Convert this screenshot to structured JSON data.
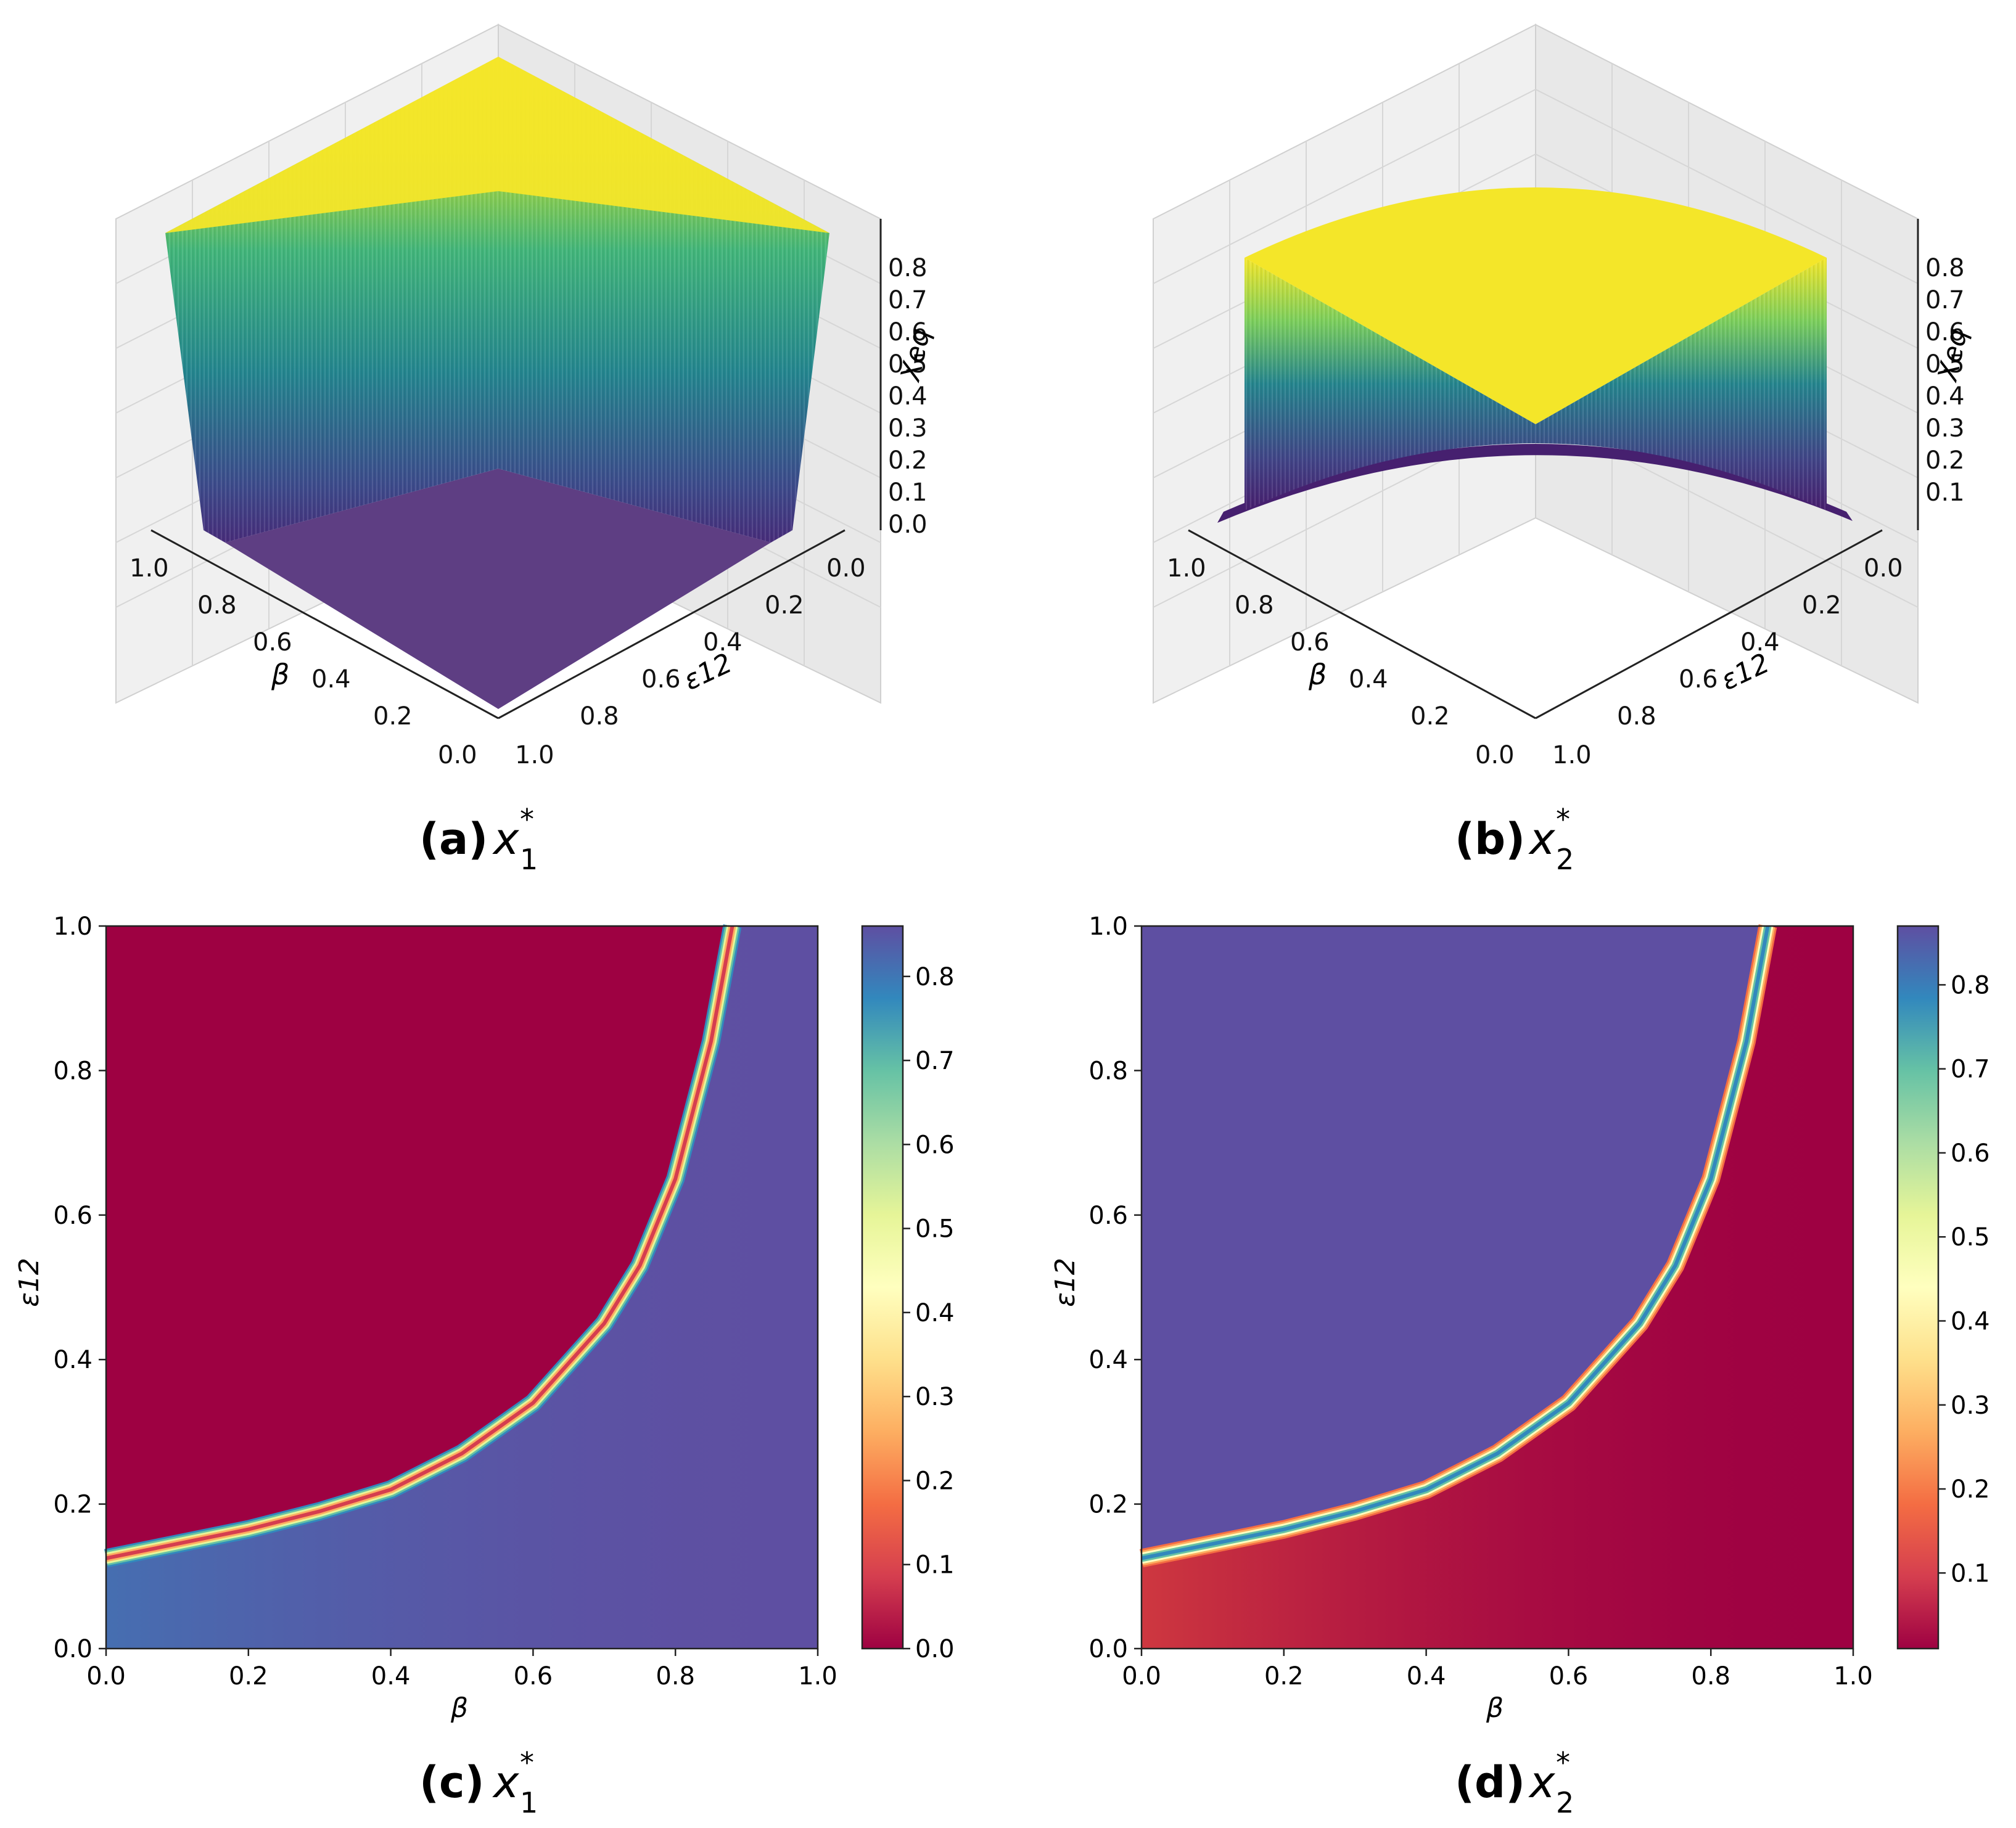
{
  "chart_data": [
    {
      "id": "a",
      "type": "surface3d",
      "variable": "x1*",
      "caption": {
        "label": "(a)",
        "symbol": "x",
        "sub": "1",
        "sup": "*"
      },
      "axes": {
        "x": {
          "label": "β",
          "ticks": [
            "1.0",
            "0.8",
            "0.6",
            "0.4",
            "0.2",
            "0.0"
          ],
          "range": [
            0,
            1
          ]
        },
        "y": {
          "label": "ε12",
          "ticks": [
            "0.0",
            "0.2",
            "0.4",
            "0.6",
            "0.8",
            "1.0"
          ],
          "range": [
            0,
            1
          ]
        },
        "z": {
          "label": "Xeq",
          "ticks": [
            "0.8",
            "0.7",
            "0.6",
            "0.5",
            "0.4",
            "0.3",
            "0.2",
            "0.1",
            "0.0"
          ],
          "range": [
            0,
            0.86
          ]
        }
      },
      "description_values": {
        "high_plateau": 0.86,
        "low_plateau": 0.0
      }
    },
    {
      "id": "b",
      "type": "surface3d",
      "variable": "x2*",
      "caption": {
        "label": "(b)",
        "symbol": "x",
        "sub": "2",
        "sup": "*"
      },
      "axes": {
        "x": {
          "label": "β",
          "ticks": [
            "1.0",
            "0.8",
            "0.6",
            "0.4",
            "0.2",
            "0.0"
          ],
          "range": [
            0,
            1
          ]
        },
        "y": {
          "label": "ε12",
          "ticks": [
            "0.0",
            "0.2",
            "0.4",
            "0.6",
            "0.8",
            "1.0"
          ],
          "range": [
            0,
            1
          ]
        },
        "z": {
          "label": "Xeq",
          "ticks": [
            "0.8",
            "0.7",
            "0.6",
            "0.5",
            "0.4",
            "0.3",
            "0.2",
            "0.1"
          ],
          "range": [
            0.01,
            0.87
          ]
        }
      },
      "description_values": {
        "high_plateau": 0.87,
        "low_plateau": 0.01
      }
    },
    {
      "id": "c",
      "type": "heatmap",
      "variable": "x1*",
      "caption": {
        "label": "(c)",
        "symbol": "x",
        "sub": "1",
        "sup": "*"
      },
      "xlabel": "β",
      "ylabel": "ε12",
      "xlim": [
        0,
        1
      ],
      "ylim": [
        0,
        1
      ],
      "xticks": [
        "0.0",
        "0.2",
        "0.4",
        "0.6",
        "0.8",
        "1.0"
      ],
      "yticks": [
        "0.0",
        "0.2",
        "0.4",
        "0.6",
        "0.8",
        "1.0"
      ],
      "colorbar": {
        "colormap": "Spectral",
        "range": [
          0,
          0.86
        ],
        "ticks": [
          "0.0",
          "0.1",
          "0.2",
          "0.3",
          "0.4",
          "0.5",
          "0.6",
          "0.7",
          "0.8"
        ]
      },
      "boundary_curve": {
        "beta": [
          0.0,
          0.1,
          0.2,
          0.3,
          0.4,
          0.5,
          0.6,
          0.7,
          0.75,
          0.8,
          0.85,
          0.88
        ],
        "eps12": [
          0.125,
          0.145,
          0.165,
          0.19,
          0.22,
          0.27,
          0.34,
          0.45,
          0.53,
          0.65,
          0.84,
          1.0
        ]
      },
      "region_values": {
        "above_curve": 0.0,
        "below_curve": 0.86
      }
    },
    {
      "id": "d",
      "type": "heatmap",
      "variable": "x2*",
      "caption": {
        "label": "(d)",
        "symbol": "x",
        "sub": "2",
        "sup": "*"
      },
      "xlabel": "β",
      "ylabel": "ε12",
      "xlim": [
        0,
        1
      ],
      "ylim": [
        0,
        1
      ],
      "xticks": [
        "0.0",
        "0.2",
        "0.4",
        "0.6",
        "0.8",
        "1.0"
      ],
      "yticks": [
        "0.0",
        "0.2",
        "0.4",
        "0.6",
        "0.8",
        "1.0"
      ],
      "colorbar": {
        "colormap": "Spectral",
        "range": [
          0.01,
          0.87
        ],
        "ticks": [
          "0.1",
          "0.2",
          "0.3",
          "0.4",
          "0.5",
          "0.6",
          "0.7",
          "0.8"
        ]
      },
      "boundary_curve": {
        "beta": [
          0.0,
          0.1,
          0.2,
          0.3,
          0.4,
          0.5,
          0.6,
          0.7,
          0.75,
          0.8,
          0.85,
          0.88
        ],
        "eps12": [
          0.125,
          0.145,
          0.165,
          0.19,
          0.22,
          0.27,
          0.34,
          0.45,
          0.53,
          0.65,
          0.84,
          1.0
        ]
      },
      "region_values": {
        "above_curve": 0.87,
        "below_curve": 0.01
      }
    }
  ],
  "colors": {
    "viridis_low": "#3b2a6b",
    "viridis_mid": "#21918c",
    "viridis_high": "#f2e82c",
    "spectral_low": "#9e0142",
    "spectral_high": "#5e4fa2"
  }
}
